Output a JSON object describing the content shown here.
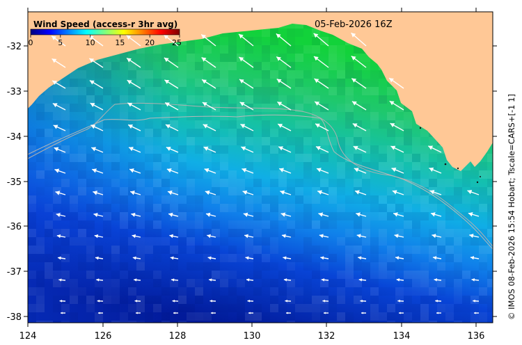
{
  "map": {
    "date": "05-Feb-2026 16Z",
    "credit": "© IMOS 08-Feb-2026 15:54 Hobart; Tscale=CARS+[-1 1]",
    "lon_range": [
      124,
      136.6
    ],
    "lat_range": [
      -38.15,
      -31.35
    ],
    "x_ticks": [
      "124",
      "126",
      "128",
      "130",
      "132",
      "134",
      "136"
    ],
    "y_ticks": [
      "-32",
      "-33",
      "-34",
      "-35",
      "-36",
      "-37",
      "-38"
    ],
    "land_color": "#ffc896",
    "arrow_color": "#ffffff"
  },
  "colorbar": {
    "title": "Wind Speed (access-r 3hr avg)",
    "ticks": [
      "0",
      "5",
      "10",
      "15",
      "20",
      "25"
    ],
    "range": [
      0,
      25
    ],
    "colormap": [
      "#00007f",
      "#0000ff",
      "#007fff",
      "#00ffff",
      "#7fff7f",
      "#ffff00",
      "#ff7f00",
      "#ff0000",
      "#7f0000"
    ]
  }
}
